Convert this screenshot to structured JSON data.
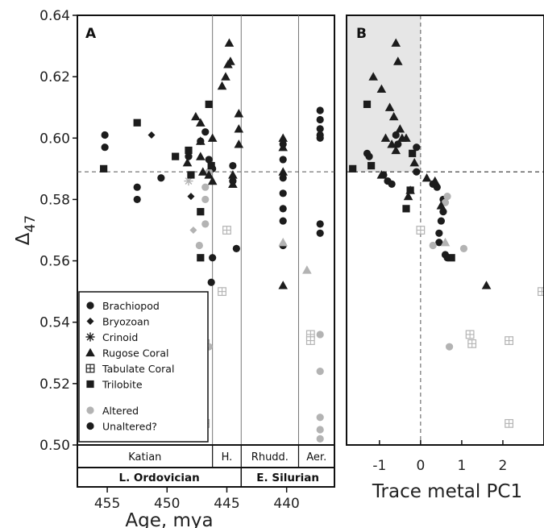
{
  "chart_data": [
    {
      "type": "scatter",
      "panel": "A",
      "xlabel": "Age, mya",
      "ylabel": "Δ47",
      "xlim": [
        457.5,
        436.0
      ],
      "ylim": [
        0.5,
        0.64
      ],
      "x_ticks": [
        455,
        450,
        445,
        440
      ],
      "y_ticks": [
        0.5,
        0.52,
        0.54,
        0.56,
        0.58,
        0.6,
        0.62,
        0.64
      ],
      "reference_line_y": 0.589,
      "stage_boundaries_x": [
        446.2,
        443.8,
        439.0
      ],
      "stages": [
        {
          "label": "Katian",
          "range": [
            457.5,
            446.2
          ]
        },
        {
          "label": "H.",
          "range": [
            446.2,
            443.8
          ]
        },
        {
          "label": "Rhudd.",
          "range": [
            443.8,
            439.0
          ]
        },
        {
          "label": "Aer.",
          "range": [
            439.0,
            436.0
          ]
        }
      ],
      "eras": [
        {
          "label": "L. Ordovician",
          "range": [
            457.5,
            443.8
          ]
        },
        {
          "label": "E. Silurian",
          "range": [
            443.8,
            436.0
          ]
        }
      ],
      "series": [
        {
          "name": "Brachiopod",
          "marker": "circle",
          "status": "unaltered",
          "points": [
            [
              455.2,
              0.601
            ],
            [
              455.2,
              0.597
            ],
            [
              452.5,
              0.58
            ],
            [
              452.5,
              0.584
            ],
            [
              450.5,
              0.587
            ],
            [
              448.2,
              0.594
            ],
            [
              447.2,
              0.599
            ],
            [
              446.8,
              0.602
            ],
            [
              446.5,
              0.593
            ],
            [
              446.2,
              0.59
            ],
            [
              446.2,
              0.561
            ],
            [
              446.3,
              0.553
            ],
            [
              444.5,
              0.591
            ],
            [
              444.5,
              0.586
            ],
            [
              444.2,
              0.564
            ],
            [
              440.3,
              0.598
            ],
            [
              440.3,
              0.593
            ],
            [
              440.3,
              0.587
            ],
            [
              440.3,
              0.582
            ],
            [
              440.3,
              0.577
            ],
            [
              440.3,
              0.573
            ],
            [
              440.3,
              0.565
            ],
            [
              437.2,
              0.609
            ],
            [
              437.2,
              0.606
            ],
            [
              437.2,
              0.603
            ],
            [
              437.2,
              0.601
            ],
            [
              437.2,
              0.6
            ],
            [
              437.2,
              0.572
            ],
            [
              437.2,
              0.569
            ]
          ]
        },
        {
          "name": "Brachiopod",
          "marker": "circle",
          "status": "altered",
          "points": [
            [
              447.3,
              0.565
            ],
            [
              446.8,
              0.572
            ],
            [
              446.8,
              0.58
            ],
            [
              446.8,
              0.584
            ],
            [
              446.5,
              0.589
            ],
            [
              446.5,
              0.532
            ],
            [
              437.2,
              0.536
            ],
            [
              437.2,
              0.524
            ],
            [
              437.2,
              0.509
            ],
            [
              437.2,
              0.505
            ],
            [
              437.2,
              0.502
            ]
          ]
        },
        {
          "name": "Bryozoan",
          "marker": "diamond",
          "status": "unaltered",
          "points": [
            [
              451.3,
              0.601
            ],
            [
              448.0,
              0.581
            ]
          ]
        },
        {
          "name": "Bryozoan",
          "marker": "diamond",
          "status": "altered",
          "points": [
            [
              447.8,
              0.57
            ]
          ]
        },
        {
          "name": "Crinoid",
          "marker": "asterisk",
          "status": "altered",
          "points": [
            [
              448.2,
              0.586
            ]
          ]
        },
        {
          "name": "Rugose Coral",
          "marker": "triangle",
          "status": "unaltered",
          "points": [
            [
              448.3,
              0.592
            ],
            [
              447.6,
              0.607
            ],
            [
              447.2,
              0.605
            ],
            [
              447.2,
              0.599
            ],
            [
              447.2,
              0.594
            ],
            [
              447.0,
              0.589
            ],
            [
              446.5,
              0.588
            ],
            [
              446.2,
              0.6
            ],
            [
              446.2,
              0.586
            ],
            [
              445.4,
              0.617
            ],
            [
              445.1,
              0.62
            ],
            [
              444.9,
              0.624
            ],
            [
              444.8,
              0.631
            ],
            [
              444.7,
              0.625
            ],
            [
              444.5,
              0.588
            ],
            [
              444.5,
              0.585
            ],
            [
              444.0,
              0.608
            ],
            [
              444.0,
              0.603
            ],
            [
              444.0,
              0.598
            ],
            [
              440.3,
              0.6
            ],
            [
              440.3,
              0.597
            ],
            [
              440.3,
              0.589
            ],
            [
              440.3,
              0.552
            ]
          ]
        },
        {
          "name": "Rugose Coral",
          "marker": "triangle",
          "status": "altered",
          "points": [
            [
              440.3,
              0.566
            ],
            [
              438.3,
              0.557
            ]
          ]
        },
        {
          "name": "Tabulate Coral",
          "marker": "square-plus",
          "status": "altered",
          "points": [
            [
              446.8,
              0.533
            ],
            [
              446.8,
              0.507
            ],
            [
              445.0,
              0.57
            ],
            [
              445.4,
              0.55
            ],
            [
              438.0,
              0.536
            ],
            [
              438.0,
              0.534
            ]
          ]
        },
        {
          "name": "Trilobite",
          "marker": "square",
          "status": "unaltered",
          "points": [
            [
              455.3,
              0.59
            ],
            [
              452.5,
              0.605
            ],
            [
              449.3,
              0.594
            ],
            [
              448.2,
              0.596
            ],
            [
              448.0,
              0.588
            ],
            [
              447.2,
              0.576
            ],
            [
              447.2,
              0.561
            ],
            [
              446.5,
              0.611
            ],
            [
              446.3,
              0.591
            ]
          ]
        }
      ]
    },
    {
      "type": "scatter",
      "panel": "B",
      "xlabel": "Trace metal PC1",
      "xlim": [
        -1.8,
        3.0
      ],
      "ylim": [
        0.5,
        0.64
      ],
      "x_ticks": [
        -1,
        0,
        1,
        2
      ],
      "reference_line_y": 0.589,
      "reference_line_x": 0,
      "shaded_region": {
        "x": [
          -1.8,
          0
        ],
        "y": [
          0.589,
          0.64
        ]
      },
      "series": [
        {
          "name": "Brachiopod",
          "marker": "circle",
          "status": "unaltered",
          "points": [
            [
              -1.3,
              0.595
            ],
            [
              -1.25,
              0.594
            ],
            [
              -0.6,
              0.601
            ],
            [
              -0.55,
              0.598
            ],
            [
              -0.9,
              0.588
            ],
            [
              -0.8,
              0.586
            ],
            [
              -0.1,
              0.597
            ],
            [
              -0.1,
              0.589
            ],
            [
              -0.7,
              0.585
            ],
            [
              0.3,
              0.585
            ],
            [
              0.4,
              0.584
            ],
            [
              0.55,
              0.58
            ],
            [
              0.55,
              0.576
            ],
            [
              0.5,
              0.573
            ],
            [
              0.45,
              0.569
            ],
            [
              0.45,
              0.566
            ],
            [
              0.6,
              0.562
            ],
            [
              0.65,
              0.561
            ]
          ]
        },
        {
          "name": "Brachiopod",
          "marker": "circle",
          "status": "altered",
          "points": [
            [
              0.65,
              0.581
            ],
            [
              0.6,
              0.579
            ],
            [
              0.3,
              0.565
            ],
            [
              1.05,
              0.564
            ],
            [
              0.7,
              0.532
            ]
          ]
        },
        {
          "name": "Rugose Coral",
          "marker": "triangle",
          "status": "unaltered",
          "points": [
            [
              -1.15,
              0.62
            ],
            [
              -0.95,
              0.616
            ],
            [
              -0.6,
              0.631
            ],
            [
              -0.55,
              0.625
            ],
            [
              -0.75,
              0.61
            ],
            [
              -0.65,
              0.607
            ],
            [
              -0.5,
              0.603
            ],
            [
              -0.45,
              0.6
            ],
            [
              -0.7,
              0.598
            ],
            [
              -0.6,
              0.596
            ],
            [
              -0.35,
              0.6
            ],
            [
              -0.15,
              0.592
            ],
            [
              -0.85,
              0.6
            ],
            [
              -0.95,
              0.588
            ],
            [
              -0.3,
              0.581
            ],
            [
              -0.25,
              0.583
            ],
            [
              0.15,
              0.587
            ],
            [
              0.35,
              0.586
            ],
            [
              0.5,
              0.578
            ],
            [
              1.6,
              0.552
            ]
          ]
        },
        {
          "name": "Rugose Coral",
          "marker": "triangle",
          "status": "altered",
          "points": [
            [
              0.6,
              0.566
            ]
          ]
        },
        {
          "name": "Tabulate Coral",
          "marker": "square-plus",
          "status": "altered",
          "points": [
            [
              0.0,
              0.57
            ],
            [
              1.2,
              0.536
            ],
            [
              1.25,
              0.533
            ],
            [
              2.15,
              0.534
            ],
            [
              2.15,
              0.507
            ],
            [
              2.95,
              0.55
            ]
          ]
        },
        {
          "name": "Trilobite",
          "marker": "square",
          "status": "unaltered",
          "points": [
            [
              -1.3,
              0.611
            ],
            [
              -1.65,
              0.59
            ],
            [
              -1.2,
              0.591
            ],
            [
              -0.2,
              0.595
            ],
            [
              -0.25,
              0.583
            ],
            [
              -0.35,
              0.577
            ],
            [
              0.75,
              0.561
            ]
          ]
        }
      ]
    }
  ],
  "colors": {
    "unaltered": "#1c1c1c",
    "altered": "#b3b3b3",
    "shade": "#e6e6e6"
  },
  "legend": {
    "types": [
      "Brachiopod",
      "Bryozoan",
      "Crinoid",
      "Rugose Coral",
      "Tabulate Coral",
      "Trilobite"
    ],
    "status": [
      "Altered",
      "Unaltered?"
    ]
  }
}
